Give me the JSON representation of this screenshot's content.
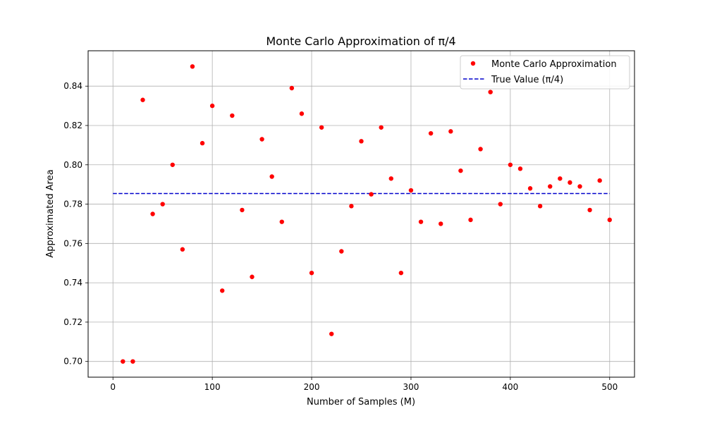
{
  "chart_data": {
    "type": "scatter",
    "title": "Monte Carlo Approximation of π/4",
    "xlabel": "Number of Samples (M)",
    "ylabel": "Approximated Area",
    "xlim": [
      -25,
      525
    ],
    "ylim": [
      0.692,
      0.858
    ],
    "xticks": [
      0,
      100,
      200,
      300,
      400,
      500
    ],
    "yticks": [
      0.7,
      0.72,
      0.74,
      0.76,
      0.78,
      0.8,
      0.82,
      0.84
    ],
    "grid": true,
    "legend_position": "top-right",
    "series": [
      {
        "name": "Monte Carlo Approximation",
        "kind": "scatter",
        "color": "#ff0000",
        "x": [
          10,
          20,
          30,
          40,
          50,
          60,
          70,
          80,
          90,
          100,
          110,
          120,
          130,
          140,
          150,
          160,
          170,
          180,
          190,
          200,
          210,
          220,
          230,
          240,
          250,
          260,
          270,
          280,
          290,
          300,
          310,
          320,
          330,
          340,
          350,
          360,
          370,
          380,
          390,
          400,
          410,
          420,
          430,
          440,
          450,
          460,
          470,
          480,
          490,
          500
        ],
        "y": [
          0.7,
          0.7,
          0.833,
          0.775,
          0.78,
          0.8,
          0.757,
          0.85,
          0.811,
          0.83,
          0.736,
          0.825,
          0.777,
          0.743,
          0.813,
          0.794,
          0.771,
          0.839,
          0.826,
          0.745,
          0.819,
          0.714,
          0.756,
          0.779,
          0.812,
          0.785,
          0.819,
          0.793,
          0.745,
          0.787,
          0.771,
          0.816,
          0.77,
          0.817,
          0.797,
          0.772,
          0.808,
          0.837,
          0.78,
          0.8,
          0.798,
          0.788,
          0.779,
          0.789,
          0.793,
          0.791,
          0.789,
          0.777,
          0.792,
          0.772
        ]
      },
      {
        "name": "True Value (π/4)",
        "kind": "hline",
        "color": "#0000cc",
        "x": [
          0,
          500
        ],
        "y": 0.7854
      }
    ]
  }
}
